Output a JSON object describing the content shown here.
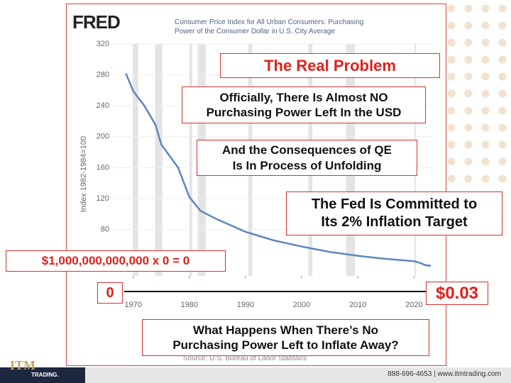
{
  "chart_data": {
    "type": "line",
    "logo": "FRED",
    "title": "Consumer Price Index for All Urban Consumers: Purchasing Power of the Consumer Dollar in U.S. City Average",
    "y_label": "Index 1982-1984=100",
    "source": "Source: U.S. Bureau of Labor Statistics",
    "series": [
      {
        "name": "Purchasing Power of the Consumer Dollar",
        "color": "#5b86bf",
        "x": [
          1968.7,
          1970,
          1972,
          1974,
          1975,
          1978,
          1980,
          1982,
          1985,
          1990,
          1995,
          2000,
          2005,
          2010,
          2015,
          2020,
          2021,
          2022,
          2023
        ],
        "values": [
          282,
          259,
          240,
          215,
          190,
          160,
          122,
          104,
          93,
          77,
          66,
          58,
          51,
          46,
          42,
          39,
          37,
          34,
          33
        ]
      }
    ],
    "recessions": [
      [
        1969.9,
        1970.9
      ],
      [
        1973.9,
        1975.2
      ],
      [
        1980,
        1980.5
      ],
      [
        1981.5,
        1982.9
      ],
      [
        1990.5,
        1991.2
      ],
      [
        2001.2,
        2001.9
      ],
      [
        2007.9,
        2009.5
      ],
      [
        2020.1,
        2020.3
      ]
    ],
    "xlim": [
      1966.5,
      2023.5
    ],
    "xticks": [
      1970,
      1980,
      1990,
      2000,
      2010,
      2020
    ],
    "ylim": [
      20,
      320
    ],
    "yticks": [
      80,
      120,
      160,
      200,
      240,
      280,
      320
    ],
    "grid": true
  },
  "annotations": [
    {
      "lines": [
        "The Real Problem"
      ],
      "style": "red"
    },
    {
      "lines": [
        "Officially, There Is Almost NO",
        "Purchasing Power Left In the USD"
      ],
      "style": "black"
    },
    {
      "lines": [
        "And the Consequences of QE",
        "Is In Process of Unfolding"
      ],
      "style": "black"
    },
    {
      "lines": [
        "The Fed Is Committed to",
        "Its 2% Inflation Target"
      ],
      "style": "black"
    },
    {
      "lines": [
        "$1,000,000,000,000 x 0 = 0"
      ],
      "style": "red"
    },
    {
      "lines": [
        "0"
      ],
      "style": "red"
    },
    {
      "lines": [
        "$0.03"
      ],
      "style": "red"
    },
    {
      "lines": [
        "What Happens When There’s No",
        "Purchasing Power Left to Inflate Away?"
      ],
      "style": "black"
    }
  ],
  "footer": {
    "logo": "ITM",
    "logo_sub": "TRADING.",
    "contact": "888-696-4653 | www.itmtrading.com"
  }
}
